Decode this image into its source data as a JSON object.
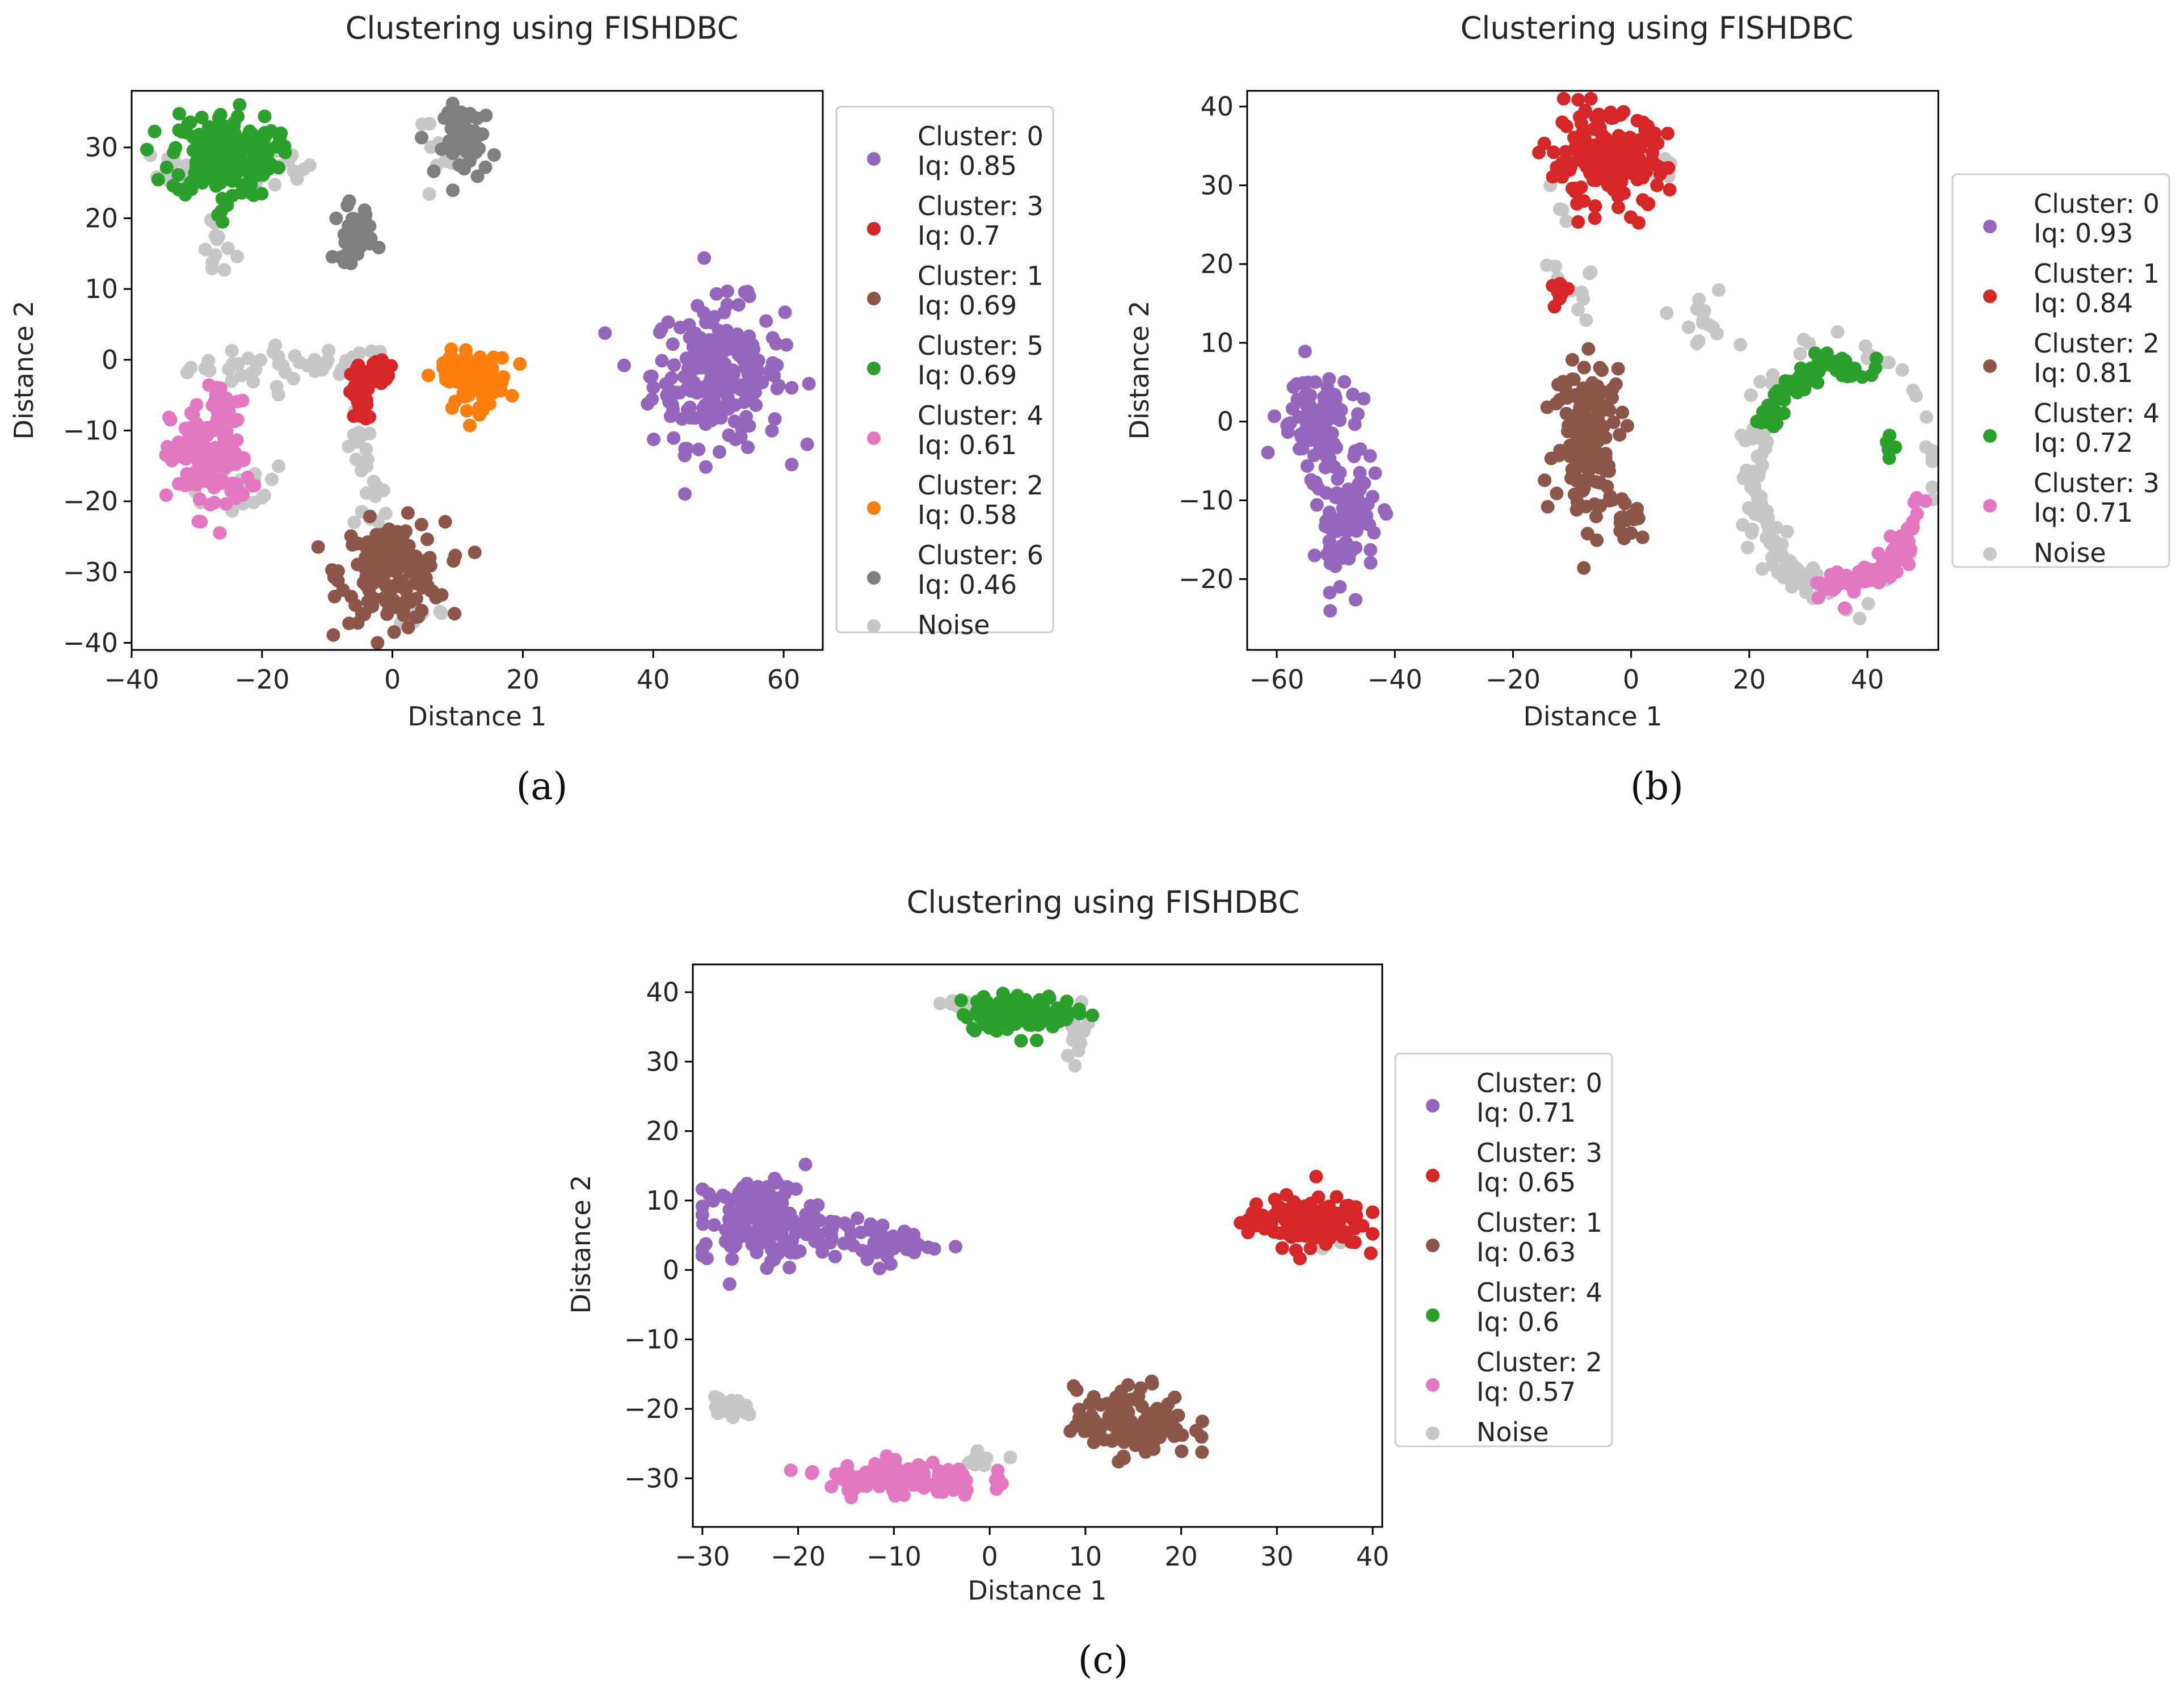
{
  "figure": {
    "captions": [
      "(a)",
      "(b)",
      "(c)"
    ]
  },
  "chart_data": [
    {
      "type": "scatter",
      "panel": "(a)",
      "title": "Clustering using FISHDBC",
      "xlabel": "Distance 1",
      "ylabel": "Distance 2",
      "xlim": [
        -40,
        66
      ],
      "ylim": [
        -41,
        38
      ],
      "xticks": [
        -40,
        -20,
        0,
        20,
        40,
        60
      ],
      "yticks": [
        -40,
        -30,
        -20,
        -10,
        0,
        10,
        20,
        30
      ],
      "legend_position": "outside-right",
      "series": [
        {
          "name": "Cluster: 0",
          "iq": "Iq: 0.85",
          "color": "#9467bd",
          "groups": [
            {
              "center": [
                50,
                -2
              ],
              "spread": [
                5,
                5
              ],
              "count": 220
            }
          ]
        },
        {
          "name": "Cluster: 3",
          "iq": "Iq: 0.7",
          "color": "#d62728",
          "groups": [
            {
              "center": [
                -5,
                -5
              ],
              "spread": [
                1,
                2
              ],
              "count": 40
            },
            {
              "center": [
                -2,
                -2
              ],
              "spread": [
                1.2,
                0.8
              ],
              "count": 25
            }
          ]
        },
        {
          "name": "Cluster: 1",
          "iq": "Iq: 0.69",
          "color": "#8c564b",
          "groups": [
            {
              "center": [
                0,
                -30
              ],
              "spread": [
                4,
                3.5
              ],
              "count": 160
            }
          ]
        },
        {
          "name": "Cluster: 5",
          "iq": "Iq: 0.69",
          "color": "#2ca02c",
          "groups": [
            {
              "center": [
                -26,
                29
              ],
              "spread": [
                4,
                3
              ],
              "count": 200
            },
            {
              "center": [
                -26,
                21
              ],
              "spread": [
                0.5,
                1
              ],
              "count": 4
            }
          ]
        },
        {
          "name": "Cluster: 4",
          "iq": "Iq: 0.61",
          "color": "#e377c2",
          "groups": [
            {
              "center": [
                -28,
                -14
              ],
              "spread": [
                3,
                4
              ],
              "count": 130
            },
            {
              "center": [
                -27,
                -6
              ],
              "spread": [
                0.6,
                2
              ],
              "count": 10
            }
          ]
        },
        {
          "name": "Cluster: 2",
          "iq": "Iq: 0.58",
          "color": "#ff7f0e",
          "groups": [
            {
              "center": [
                13,
                -3
              ],
              "spread": [
                2.5,
                2
              ],
              "count": 70
            },
            {
              "center": [
                9,
                -1
              ],
              "spread": [
                1.5,
                0.7
              ],
              "count": 15
            }
          ]
        },
        {
          "name": "Cluster: 6",
          "iq": "Iq: 0.46",
          "color": "#7f7f7f",
          "groups": [
            {
              "center": [
                12,
                31
              ],
              "spread": [
                2,
                2.5
              ],
              "count": 55
            },
            {
              "center": [
                -6,
                18
              ],
              "spread": [
                1.5,
                2
              ],
              "count": 35
            }
          ]
        },
        {
          "name": "Noise",
          "iq": "",
          "color": "#c7c7c7",
          "groups": [
            {
              "center": [
                -15,
                -1
              ],
              "spread": [
                8,
                1.5
              ],
              "count": 45
            },
            {
              "center": [
                -33,
                27
              ],
              "spread": [
                2,
                1.5
              ],
              "count": 14
            },
            {
              "center": [
                -18,
                27
              ],
              "spread": [
                3,
                1.5
              ],
              "count": 14
            },
            {
              "center": [
                -27,
                16
              ],
              "spread": [
                1.5,
                2.5
              ],
              "count": 12
            },
            {
              "center": [
                -5,
                -13
              ],
              "spread": [
                1,
                3
              ],
              "count": 12
            },
            {
              "center": [
                -3,
                -20
              ],
              "spread": [
                1.5,
                2
              ],
              "count": 12
            },
            {
              "center": [
                8,
                29
              ],
              "spread": [
                1.5,
                4
              ],
              "count": 16
            },
            {
              "center": [
                -25,
                -18
              ],
              "spread": [
                5,
                2
              ],
              "count": 18
            },
            {
              "center": [
                4,
                -36
              ],
              "spread": [
                3,
                1
              ],
              "count": 12
            }
          ]
        }
      ]
    },
    {
      "type": "scatter",
      "panel": "(b)",
      "title": "Clustering using FISHDBC",
      "xlabel": "Distance 1",
      "ylabel": "Distance 2",
      "xlim": [
        -65,
        52
      ],
      "ylim": [
        -29,
        42
      ],
      "xticks": [
        -60,
        -40,
        -20,
        0,
        20,
        40
      ],
      "yticks": [
        -20,
        -10,
        0,
        10,
        20,
        30,
        40
      ],
      "legend_position": "outside-right",
      "series": [
        {
          "name": "Cluster: 0",
          "iq": "Iq: 0.93",
          "color": "#9467bd",
          "groups": [
            {
              "center": [
                -54,
                0
              ],
              "spread": [
                3,
                3
              ],
              "count": 90
            },
            {
              "center": [
                -48,
                -12
              ],
              "spread": [
                2.5,
                4
              ],
              "count": 90
            }
          ]
        },
        {
          "name": "Cluster: 1",
          "iq": "Iq: 0.84",
          "color": "#d62728",
          "groups": [
            {
              "center": [
                -4,
                33
              ],
              "spread": [
                5,
                3
              ],
              "count": 180
            },
            {
              "center": [
                -12,
                17
              ],
              "spread": [
                0.6,
                1
              ],
              "count": 10
            }
          ]
        },
        {
          "name": "Cluster: 2",
          "iq": "Iq: 0.81",
          "color": "#8c564b",
          "groups": [
            {
              "center": [
                -7,
                -2
              ],
              "spread": [
                3,
                5
              ],
              "count": 140
            },
            {
              "center": [
                -1,
                -12
              ],
              "spread": [
                1.5,
                1.5
              ],
              "count": 15
            }
          ]
        },
        {
          "name": "Cluster: 4",
          "iq": "Iq: 0.72",
          "color": "#2ca02c",
          "groups": [
            {
              "arc": [
                35,
                -7,
                14,
                65,
                155
              ],
              "count": 70
            },
            {
              "center": [
                44,
                -3
              ],
              "spread": [
                0.5,
                1
              ],
              "count": 5
            }
          ]
        },
        {
          "name": "Cluster: 3",
          "iq": "Iq: 0.71",
          "color": "#e377c2",
          "groups": [
            {
              "arc": [
                35,
                -7,
                14,
                255,
                350
              ],
              "count": 80
            }
          ]
        },
        {
          "name": "Noise",
          "iq": "",
          "color": "#c7c7c7",
          "groups": [
            {
              "arc": [
                35,
                -7,
                14,
                155,
                255
              ],
              "count": 90
            },
            {
              "arc": [
                35,
                -7,
                17,
                0,
                360
              ],
              "count": 40
            },
            {
              "center": [
                12,
                12
              ],
              "spread": [
                2.5,
                2
              ],
              "count": 14
            },
            {
              "center": [
                -10,
                20
              ],
              "spread": [
                3,
                6
              ],
              "count": 14
            },
            {
              "center": [
                6,
                32
              ],
              "spread": [
                2,
                1
              ],
              "count": 6
            }
          ]
        }
      ]
    },
    {
      "type": "scatter",
      "panel": "(c)",
      "title": "Clustering using FISHDBC",
      "xlabel": "Distance 1",
      "ylabel": "Distance 2",
      "xlim": [
        -31,
        41
      ],
      "ylim": [
        -37,
        44
      ],
      "xticks": [
        -30,
        -20,
        -10,
        0,
        10,
        20,
        30,
        40
      ],
      "yticks": [
        -30,
        -20,
        -10,
        0,
        10,
        20,
        30,
        40
      ],
      "legend_position": "outside-right",
      "series": [
        {
          "name": "Cluster: 0",
          "iq": "Iq: 0.71",
          "color": "#9467bd",
          "groups": [
            {
              "center": [
                -24,
                7
              ],
              "spread": [
                3,
                3
              ],
              "count": 150
            },
            {
              "center": [
                -12,
                4
              ],
              "spread": [
                3,
                1.5
              ],
              "count": 60
            }
          ]
        },
        {
          "name": "Cluster: 3",
          "iq": "Iq: 0.65",
          "color": "#d62728",
          "groups": [
            {
              "center": [
                33,
                7
              ],
              "spread": [
                3,
                1.8
              ],
              "count": 150
            }
          ]
        },
        {
          "name": "Cluster: 1",
          "iq": "Iq: 0.63",
          "color": "#8c564b",
          "groups": [
            {
              "center": [
                15,
                -22
              ],
              "spread": [
                3,
                2.5
              ],
              "count": 130
            }
          ]
        },
        {
          "name": "Cluster: 4",
          "iq": "Iq: 0.6",
          "color": "#2ca02c",
          "groups": [
            {
              "center": [
                3,
                37
              ],
              "spread": [
                3,
                1.3
              ],
              "count": 110
            }
          ]
        },
        {
          "name": "Cluster: 2",
          "iq": "Iq: 0.57",
          "color": "#e377c2",
          "groups": [
            {
              "center": [
                -9,
                -30
              ],
              "spread": [
                4,
                1.3
              ],
              "count": 120
            }
          ]
        },
        {
          "name": "Noise",
          "iq": "",
          "color": "#c7c7c7",
          "groups": [
            {
              "center": [
                -27,
                -20
              ],
              "spread": [
                1.2,
                0.8
              ],
              "count": 20
            },
            {
              "center": [
                -3,
                38
              ],
              "spread": [
                1.5,
                0.8
              ],
              "count": 10
            },
            {
              "center": [
                9,
                34
              ],
              "spread": [
                1,
                3
              ],
              "count": 14
            },
            {
              "center": [
                -1,
                -27
              ],
              "spread": [
                1.5,
                0.7
              ],
              "count": 8
            },
            {
              "center": [
                36,
                5
              ],
              "spread": [
                0.8,
                0.8
              ],
              "count": 5
            }
          ]
        }
      ]
    }
  ]
}
